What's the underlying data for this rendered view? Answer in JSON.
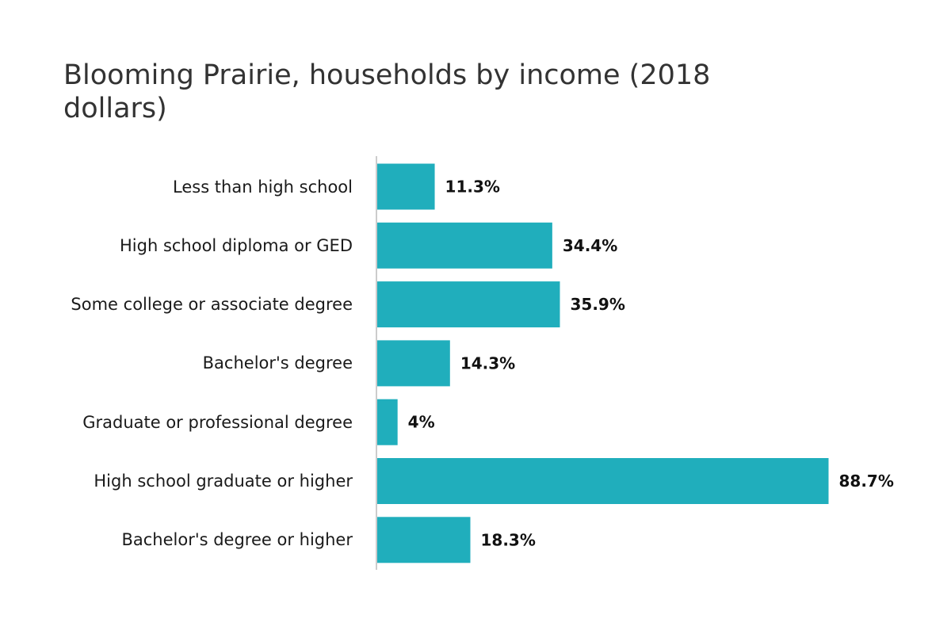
{
  "chart_data": {
    "type": "bar",
    "orientation": "horizontal",
    "title": "Blooming Prairie, households by income (2018 dollars)",
    "categories": [
      "Less than high school",
      "High school diploma or GED",
      "Some college or associate degree",
      "Bachelor's degree",
      "Graduate or professional degree",
      "High school graduate or higher",
      "Bachelor's degree or higher"
    ],
    "values": [
      11.3,
      34.4,
      35.9,
      14.3,
      4,
      88.7,
      18.3
    ],
    "value_labels": [
      "11.3%",
      "34.4%",
      "35.9%",
      "14.3%",
      "4%",
      "88.7%",
      "18.3%"
    ],
    "xlim": [
      0,
      100
    ],
    "bar_color": "#20aebc",
    "axis_color": "#cccccc",
    "grid": false,
    "legend": "none"
  }
}
